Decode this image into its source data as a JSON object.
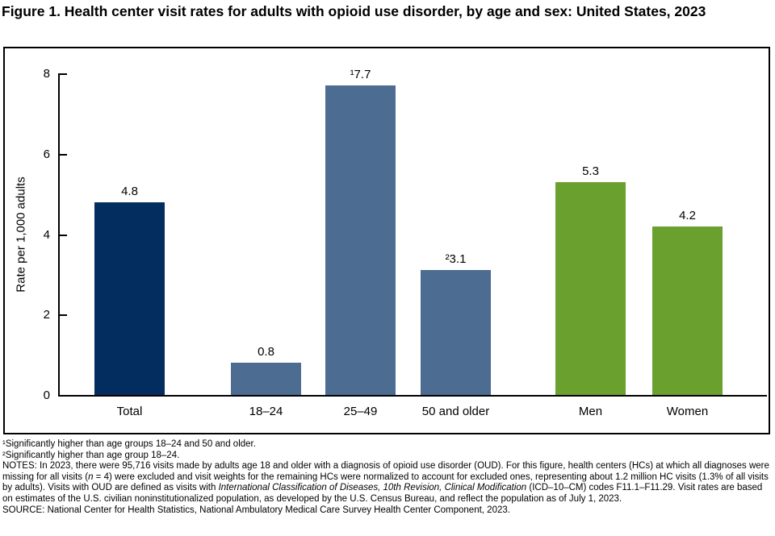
{
  "title": "Figure 1. Health center visit rates for adults with opioid use disorder, by age and sex: United States, 2023",
  "chart_data": {
    "type": "bar",
    "title": "Figure 1. Health center visit rates for adults with opioid use disorder, by age and sex: United States, 2023",
    "xlabel": "",
    "ylabel": "Rate per 1,000 adults",
    "ylim": [
      0,
      8
    ],
    "yticks": [
      0,
      2,
      4,
      6,
      8
    ],
    "grid": "off",
    "legend": "none",
    "categories": [
      "Total",
      "18–24",
      "25–49",
      "50 and older",
      "Men",
      "Women"
    ],
    "values": [
      4.8,
      0.8,
      7.7,
      3.1,
      5.3,
      4.2
    ],
    "bars": [
      {
        "label": "Total",
        "value": 4.8,
        "display": "4.8",
        "group": "total",
        "color_key": "navy"
      },
      {
        "label": "18–24",
        "value": 0.8,
        "display": "0.8",
        "group": "age",
        "color_key": "steel"
      },
      {
        "label": "25–49",
        "value": 7.7,
        "display": "¹7.7",
        "group": "age",
        "color_key": "steel"
      },
      {
        "label": "50 and older",
        "value": 3.1,
        "display": "²3.1",
        "group": "age",
        "color_key": "steel"
      },
      {
        "label": "Men",
        "value": 5.3,
        "display": "5.3",
        "group": "sex",
        "color_key": "green"
      },
      {
        "label": "Women",
        "value": 4.2,
        "display": "4.2",
        "group": "sex",
        "color_key": "green"
      }
    ],
    "colors": {
      "navy": "#022d5e",
      "steel": "#4d6c92",
      "green": "#6aa02e",
      "axis": "#000000"
    }
  },
  "footnotes": {
    "fn1": "¹Significantly higher than age groups 18–24 and 50 and older.",
    "fn2": "²Significantly higher than age group 18–24.",
    "notes_segments": [
      {
        "text": "NOTES: In 2023, there were 95,716 visits made by adults age 18 and older with a diagnosis of opioid use disorder (OUD). For this figure, health centers (HCs) at which all diagnoses were missing for all visits (",
        "italic": false
      },
      {
        "text": "n",
        "italic": true
      },
      {
        "text": " = 4) were excluded and visit weights for the remaining HCs were normalized to account for excluded ones, representing about 1.2 million HC visits (1.3% of all visits by adults). Visits with OUD are defined as visits with ",
        "italic": false
      },
      {
        "text": "International Classification of Diseases, 10th Revision, Clinical Modification",
        "italic": true
      },
      {
        "text": " (ICD–10–CM) codes F11.1–F11.29. Visit rates are based on estimates of the U.S. civilian noninstitutionalized population, as developed by the U.S. Census Bureau, and reflect the population as of July 1, 2023.",
        "italic": false
      }
    ],
    "source": "SOURCE: National Center for Health Statistics, National Ambulatory Medical Care Survey Health Center Component, 2023."
  }
}
